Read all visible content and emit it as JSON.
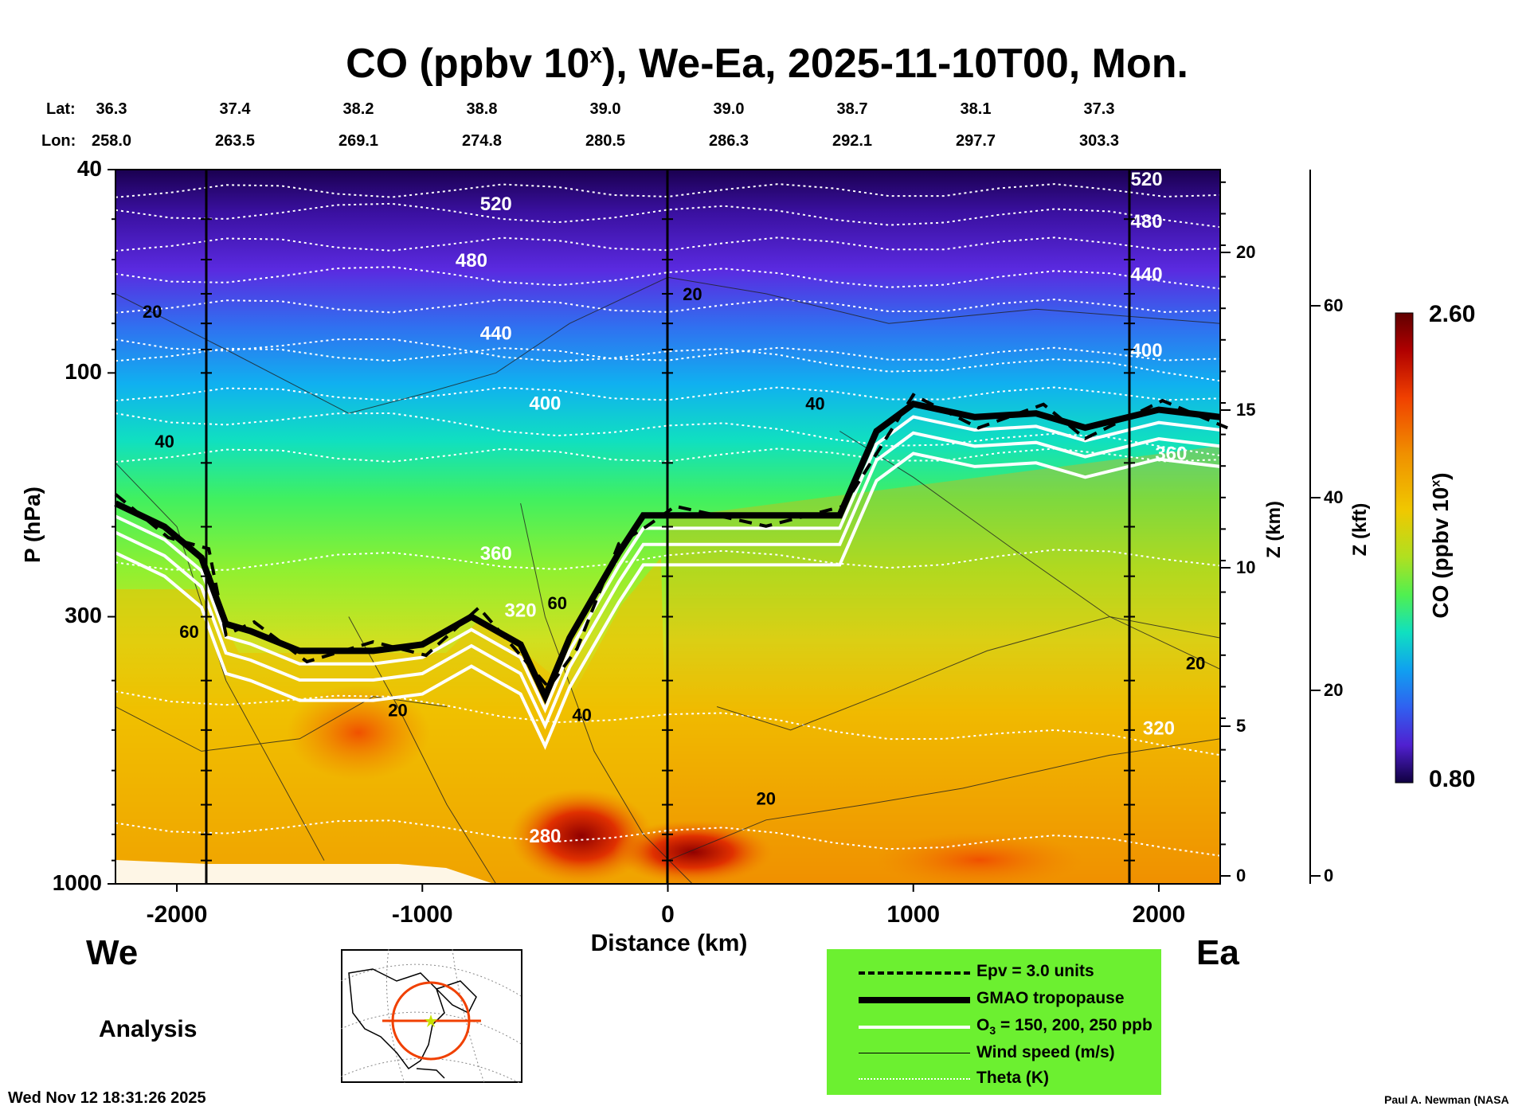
{
  "title_main": "CO (ppbv 10",
  "title_sup": "x",
  "title_rest": "), We-Ea, 2025-11-10T00, Mon.",
  "header": {
    "lat_label": "Lat:",
    "lon_label": "Lon:",
    "lat": [
      "36.3",
      "37.4",
      "38.2",
      "38.8",
      "39.0",
      "39.0",
      "38.7",
      "38.1",
      "37.3"
    ],
    "lon": [
      "258.0",
      "263.5",
      "269.1",
      "274.8",
      "280.5",
      "286.3",
      "292.1",
      "297.7",
      "303.3"
    ]
  },
  "y_axis_label": "P (hPa)",
  "x_axis_label": "Distance (km)",
  "z_km_label": "Z (km)",
  "z_kft_label": "Z (kft)",
  "colorbar": {
    "label": "CO (ppbv 10",
    "label_sup": "x",
    "label_end": ")",
    "max_label": "2.60",
    "min_label": "0.80"
  },
  "west_label": "We",
  "east_label": "Ea",
  "analysis_label": "Analysis",
  "timestamp": "Wed Nov 12 18:31:26 2025",
  "credit": "Paul A. Newman (NASA",
  "legend": {
    "epv": "Epv = 3.0 units",
    "tropopause": "GMAO tropopause",
    "o3_prefix": "O",
    "o3_sub": "3",
    "o3_suffix": " = 150, 200, 250 ppb",
    "wind": "Wind speed (m/s)",
    "theta": "Theta (K)"
  },
  "contour_labels": {
    "theta": [
      "520",
      "480",
      "440",
      "400",
      "360",
      "320",
      "280",
      "520",
      "480",
      "440",
      "400",
      "360",
      "320"
    ],
    "wind": [
      "20",
      "40",
      "60",
      "20",
      "60",
      "40",
      "20",
      "20",
      "40",
      "20"
    ]
  },
  "colors": {
    "co_high": "#7a0000",
    "co_mid": "#f0c000",
    "co_green": "#40f060",
    "co_low": "#1a0050",
    "legend_bg": "#6cf030"
  },
  "chart_data": {
    "type": "heatmap",
    "title": "CO (ppbv 10x), We-Ea, 2025-11-10T00, Mon.",
    "xlabel": "Distance (km)",
    "ylabel": "P (hPa)",
    "xlim": [
      -2250,
      2250
    ],
    "ylim": [
      1000,
      40
    ],
    "y_scale": "log",
    "x_ticks": [
      "-2000",
      "-1000",
      "0",
      "1000",
      "2000"
    ],
    "y_ticks": [
      "40",
      "100",
      "300",
      "1000"
    ],
    "z_km_ticks": [
      "0",
      "5",
      "10",
      "15",
      "20"
    ],
    "z_kft_ticks": [
      "0",
      "20",
      "40",
      "60"
    ],
    "colorbar_range": [
      0.8,
      2.6
    ],
    "theta_levels_K": [
      280,
      320,
      360,
      400,
      440,
      480,
      520
    ],
    "tropopause_hPa": {
      "x": [
        -2250,
        -2050,
        -1900,
        -1800,
        -1700,
        -1500,
        -1200,
        -1000,
        -800,
        -600,
        -500,
        -400,
        -200,
        -100,
        0,
        400,
        700,
        850,
        1000,
        1250,
        1500,
        1700,
        2000,
        2250
      ],
      "p": [
        180,
        200,
        230,
        310,
        320,
        350,
        350,
        340,
        300,
        340,
        430,
        330,
        225,
        190,
        190,
        190,
        190,
        130,
        115,
        122,
        120,
        128,
        118,
        122
      ]
    }
  }
}
